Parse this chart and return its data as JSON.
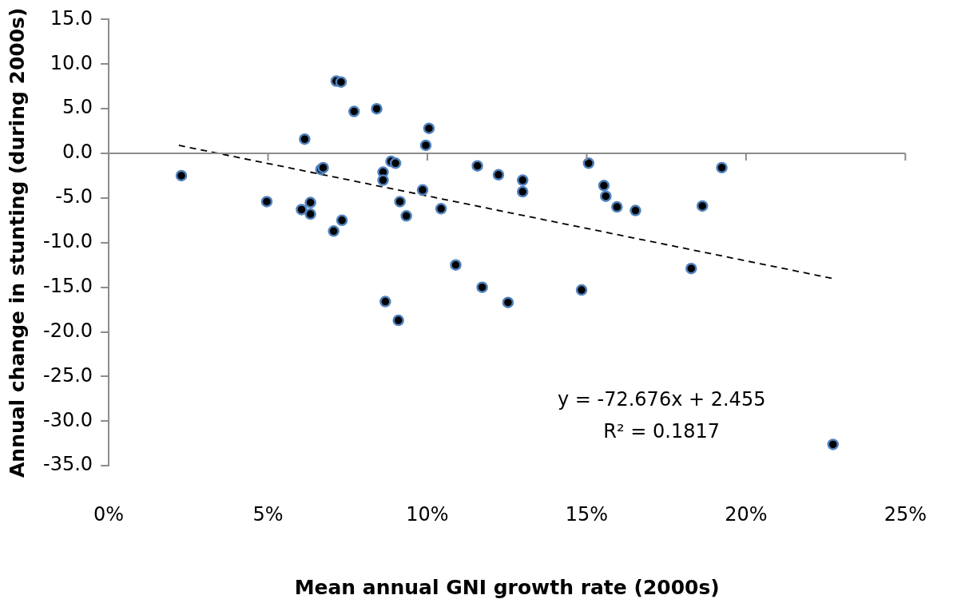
{
  "chart_data": {
    "type": "scatter",
    "xlabel": "Mean annual GNI growth rate (2000s)",
    "ylabel": "Annual change in stunting (during 2000s)",
    "xlim": [
      0,
      25
    ],
    "ylim": [
      -35,
      15
    ],
    "xticks": [
      {
        "value": 0,
        "label": "0%"
      },
      {
        "value": 5,
        "label": "5%"
      },
      {
        "value": 10,
        "label": "10%"
      },
      {
        "value": 15,
        "label": "15%"
      },
      {
        "value": 20,
        "label": "20%"
      },
      {
        "value": 25,
        "label": "25%"
      }
    ],
    "yticks": [
      {
        "value": -35,
        "label": "-35.0"
      },
      {
        "value": -30,
        "label": "-30.0"
      },
      {
        "value": -25,
        "label": "-25.0"
      },
      {
        "value": -20,
        "label": "-20.0"
      },
      {
        "value": -15,
        "label": "-15.0"
      },
      {
        "value": -10,
        "label": "-10.0"
      },
      {
        "value": -5,
        "label": "-5.0"
      },
      {
        "value": 0,
        "label": "0.0"
      },
      {
        "value": 5,
        "label": "5.0"
      },
      {
        "value": 10,
        "label": "10.0"
      },
      {
        "value": 15,
        "label": "15.0"
      }
    ],
    "series": [
      {
        "color": "#000000",
        "marker": "circle",
        "x": [
          2.28,
          4.96,
          6.05,
          6.15,
          6.33,
          6.33,
          6.66,
          6.73,
          7.06,
          7.14,
          7.29,
          7.32,
          7.7,
          8.41,
          8.61,
          8.61,
          8.68,
          8.86,
          9.0,
          9.14,
          9.09,
          9.34,
          9.85,
          9.95,
          10.05,
          10.43,
          10.89,
          11.57,
          11.72,
          12.23,
          12.99,
          12.99,
          12.53,
          15.06,
          15.54,
          15.6,
          15.95,
          16.53,
          14.84,
          18.63,
          18.28,
          19.24,
          22.73
        ],
        "values": [
          -2.5,
          -5.4,
          -6.3,
          1.6,
          -5.5,
          -6.8,
          -1.8,
          -1.6,
          -8.7,
          8.1,
          8.0,
          -7.5,
          4.7,
          5.0,
          -2.1,
          -3.0,
          -16.6,
          -0.9,
          -1.1,
          -5.4,
          -18.7,
          -7.0,
          -4.1,
          0.9,
          2.8,
          -6.2,
          -12.5,
          -1.4,
          -15.0,
          -2.4,
          -3.0,
          -4.3,
          -16.7,
          -1.1,
          -3.6,
          -4.8,
          -6.0,
          -6.4,
          -15.3,
          -5.9,
          -12.9,
          -1.6,
          -32.6
        ]
      },
      {
        "type": "line",
        "color": "#000000",
        "marker": "none",
        "line_style": "dashed",
        "x": [
          2.2,
          22.7
        ],
        "values": [
          0.9,
          -14.0
        ]
      }
    ],
    "annotations": [
      "y = -72.676x + 2.455",
      "R² = 0.1817"
    ]
  }
}
